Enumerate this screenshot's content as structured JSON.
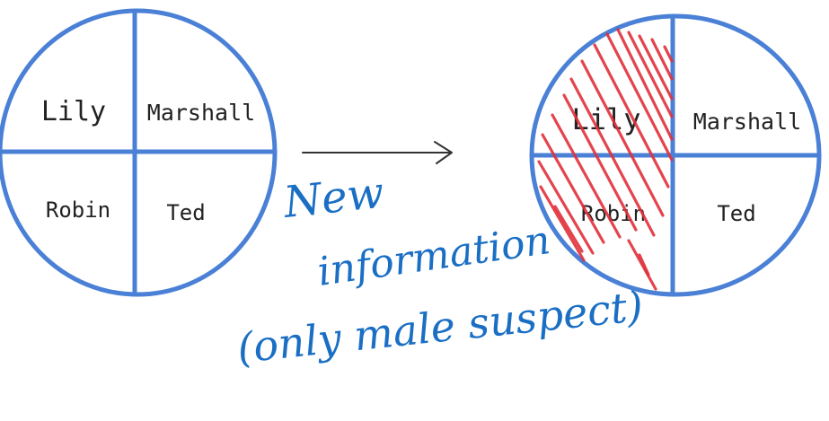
{
  "colors": {
    "diagram_stroke": "#4a80d6",
    "arrow": "#333333",
    "annotation_ink": "#1a6fc4",
    "eliminated_hatch": "#e0303a"
  },
  "before": {
    "quadrants": {
      "top_left": "Lily",
      "top_right": "Marshall",
      "bottom_left": "Robin",
      "bottom_right": "Ted"
    }
  },
  "after": {
    "quadrants": {
      "top_left": "Lily",
      "top_right": "Marshall",
      "bottom_left": "Robin",
      "bottom_right": "Ted"
    },
    "eliminated_side": "left"
  },
  "annotation": {
    "line1": "New",
    "line2": "information",
    "line3": "(only male suspect)"
  }
}
